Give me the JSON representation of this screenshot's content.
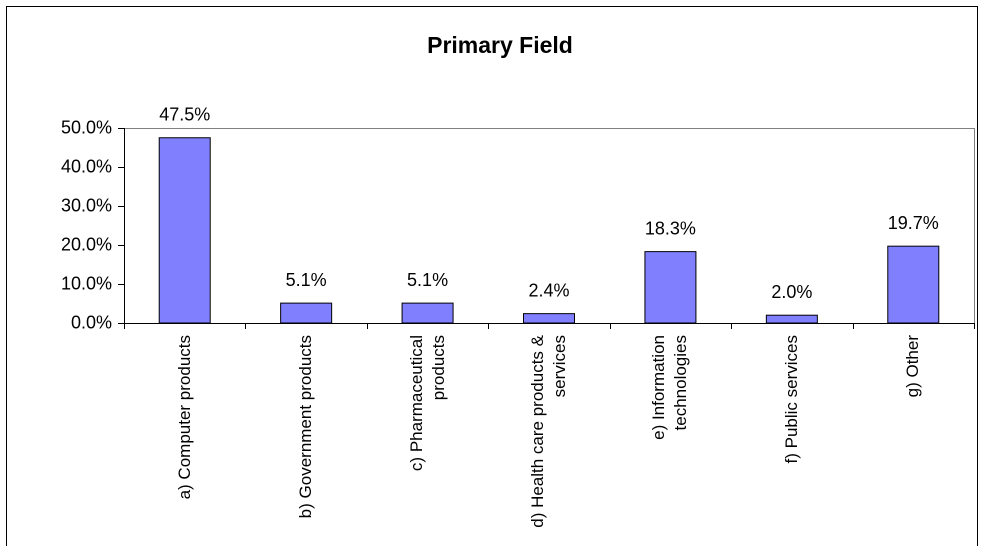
{
  "chart_data": {
    "type": "bar",
    "title": "Primary Field",
    "categories": [
      "a) Computer products",
      "b) Government products",
      "c) Pharmaceutical products",
      "d) Health care products & services",
      "e) Information technologies",
      "f) Public services",
      "g) Other"
    ],
    "values": [
      47.5,
      5.1,
      5.1,
      2.4,
      18.3,
      2.0,
      19.7
    ],
    "value_labels": [
      "47.5%",
      "5.1%",
      "5.1%",
      "2.4%",
      "18.3%",
      "2.0%",
      "19.7%"
    ],
    "color": "#8080ff",
    "ylim": [
      0,
      50
    ],
    "yticks": [
      {
        "value": 0,
        "label": "0.0%"
      },
      {
        "value": 10,
        "label": "10.0%"
      },
      {
        "value": 20,
        "label": "20.0%"
      },
      {
        "value": 30,
        "label": "30.0%"
      },
      {
        "value": 40,
        "label": "40.0%"
      },
      {
        "value": 50,
        "label": "50.0%"
      }
    ],
    "grid": false
  }
}
